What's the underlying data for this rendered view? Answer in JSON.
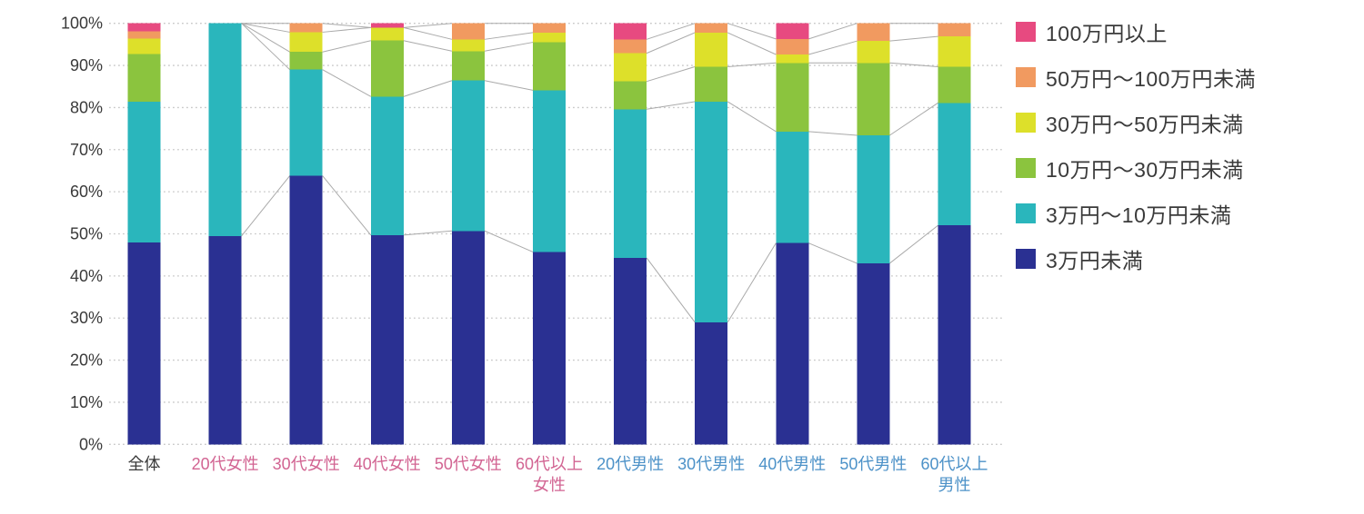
{
  "chart_data": {
    "type": "bar",
    "variant": "100-percent-stacked-column",
    "title": "",
    "xlabel": "",
    "ylabel": "",
    "unit": "%",
    "ylim": [
      0,
      100
    ],
    "y_ticks": [
      "0%",
      "10%",
      "20%",
      "30%",
      "40%",
      "50%",
      "60%",
      "70%",
      "80%",
      "90%",
      "100%"
    ],
    "grid": "dotted-horizontal",
    "legend_position": "right",
    "categories": [
      {
        "label": "全体",
        "lines": [
          "全体"
        ],
        "label_color": "#3a3a3a"
      },
      {
        "label": "20代女性",
        "lines": [
          "20代女性"
        ],
        "label_color": "#d26492"
      },
      {
        "label": "30代女性",
        "lines": [
          "30代女性"
        ],
        "label_color": "#d26492"
      },
      {
        "label": "40代女性",
        "lines": [
          "40代女性"
        ],
        "label_color": "#d26492"
      },
      {
        "label": "50代女性",
        "lines": [
          "50代女性"
        ],
        "label_color": "#d26492"
      },
      {
        "label": "60代以上女性",
        "lines": [
          "60代以上",
          "女性"
        ],
        "label_color": "#d26492"
      },
      {
        "label": "20代男性",
        "lines": [
          "20代男性"
        ],
        "label_color": "#4d92c8"
      },
      {
        "label": "30代男性",
        "lines": [
          "30代男性"
        ],
        "label_color": "#4d92c8"
      },
      {
        "label": "40代男性",
        "lines": [
          "40代男性"
        ],
        "label_color": "#4d92c8"
      },
      {
        "label": "50代男性",
        "lines": [
          "50代男性"
        ],
        "label_color": "#4d92c8"
      },
      {
        "label": "60代以上男性",
        "lines": [
          "60代以上",
          "男性"
        ],
        "label_color": "#4d92c8"
      }
    ],
    "series": [
      {
        "name": "3万円未満",
        "color": "#2a3092",
        "values": [
          48.0,
          49.5,
          63.8,
          49.7,
          50.7,
          45.7,
          44.3,
          29.0,
          47.8,
          43.0,
          52.0
        ]
      },
      {
        "name": "3万円〜10万円未満",
        "color": "#2ab6bc",
        "values": [
          33.4,
          50.5,
          25.2,
          32.9,
          35.7,
          38.4,
          35.3,
          52.4,
          26.5,
          30.4,
          29.1
        ]
      },
      {
        "name": "10万円〜30万円未満",
        "color": "#8bc43e",
        "values": [
          11.3,
          0.0,
          4.2,
          13.3,
          7.0,
          11.4,
          6.6,
          8.3,
          16.3,
          17.2,
          8.6
        ]
      },
      {
        "name": "30万円〜50万円未満",
        "color": "#dde02a",
        "values": [
          3.7,
          0.0,
          4.7,
          3.1,
          2.8,
          2.3,
          6.7,
          8.1,
          2.0,
          5.2,
          7.2
        ]
      },
      {
        "name": "50万円〜100万円未満",
        "color": "#f19a60",
        "values": [
          1.7,
          0.0,
          2.1,
          0.0,
          3.8,
          2.2,
          3.3,
          2.2,
          3.7,
          4.2,
          3.1
        ]
      },
      {
        "name": "100万円以上",
        "color": "#e74a80",
        "values": [
          1.9,
          0.0,
          0.0,
          1.0,
          0.0,
          0.0,
          3.8,
          0.0,
          3.7,
          0.0,
          0.0
        ]
      }
    ],
    "legend_items": [
      {
        "label": "100万円以上",
        "color": "#e74a80"
      },
      {
        "label": "50万円〜100万円未満",
        "color": "#f19a60"
      },
      {
        "label": "30万円〜50万円未満",
        "color": "#dde02a"
      },
      {
        "label": "10万円〜30万円未満",
        "color": "#8bc43e"
      },
      {
        "label": "3万円〜10万円未満",
        "color": "#2ab6bc"
      },
      {
        "label": "3万円未満",
        "color": "#2a3092"
      }
    ],
    "connector_groups": [
      [
        1,
        2,
        3,
        4,
        5
      ],
      [
        6,
        7,
        8,
        9,
        10
      ]
    ],
    "colors": {
      "grid": "#c9c9c9",
      "connector": "#aaaaaa",
      "axis_text": "#3a3a3a"
    }
  }
}
